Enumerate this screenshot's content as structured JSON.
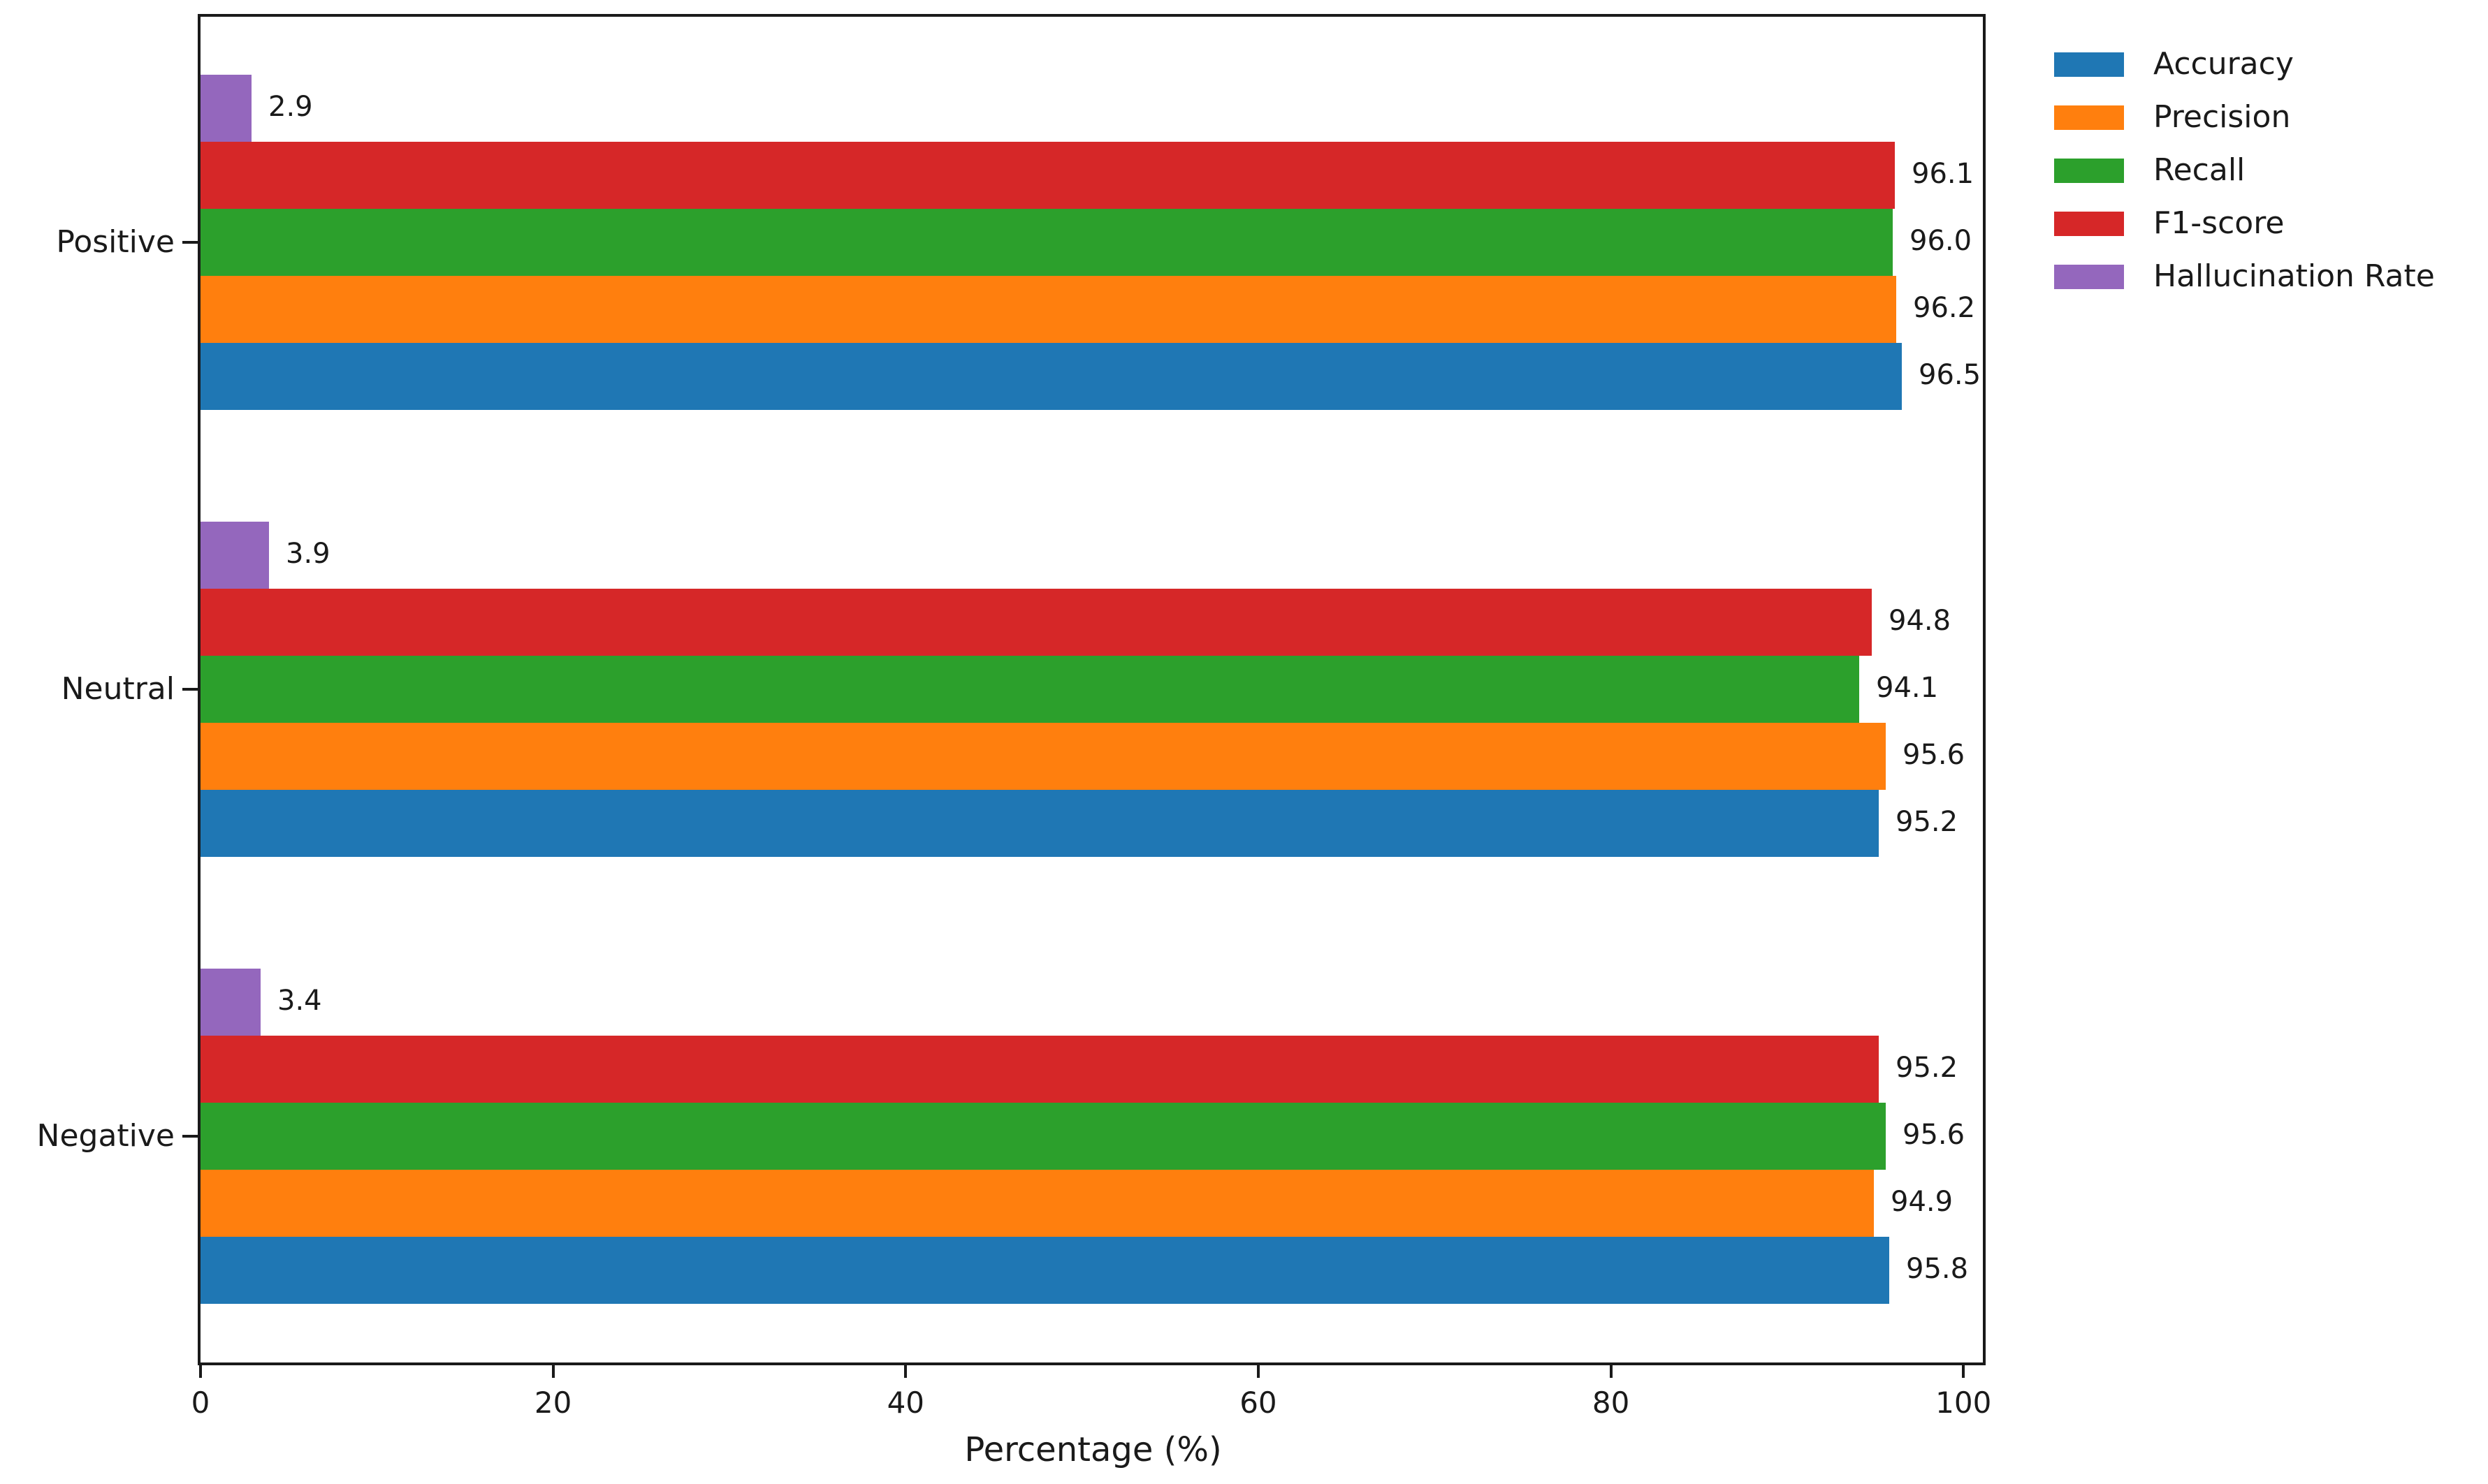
{
  "chart_data": {
    "type": "bar",
    "orientation": "horizontal",
    "title": "",
    "xlabel": "Percentage (%)",
    "ylabel": "",
    "categories": [
      "Positive",
      "Neutral",
      "Negative"
    ],
    "series": [
      {
        "name": "Accuracy",
        "color": "#1f77b4",
        "values": [
          96.5,
          95.2,
          95.8
        ]
      },
      {
        "name": "Precision",
        "color": "#ff7f0e",
        "values": [
          96.2,
          95.6,
          94.9
        ]
      },
      {
        "name": "Recall",
        "color": "#2ca02c",
        "values": [
          96.0,
          94.1,
          95.6
        ]
      },
      {
        "name": "F1-score",
        "color": "#d62728",
        "values": [
          96.1,
          94.8,
          95.2
        ]
      },
      {
        "name": "Hallucination Rate",
        "color": "#9467bd",
        "values": [
          2.9,
          3.9,
          3.4
        ]
      }
    ],
    "x_ticks": [
      0,
      20,
      40,
      60,
      80,
      100
    ],
    "xlim": [
      0,
      101.1
    ],
    "value_label_decimals": 1,
    "grid": "off",
    "legend_position": "upper-right-outside",
    "bar_order_top_to_bottom": [
      "Hallucination Rate",
      "F1-score",
      "Recall",
      "Precision",
      "Accuracy"
    ]
  }
}
